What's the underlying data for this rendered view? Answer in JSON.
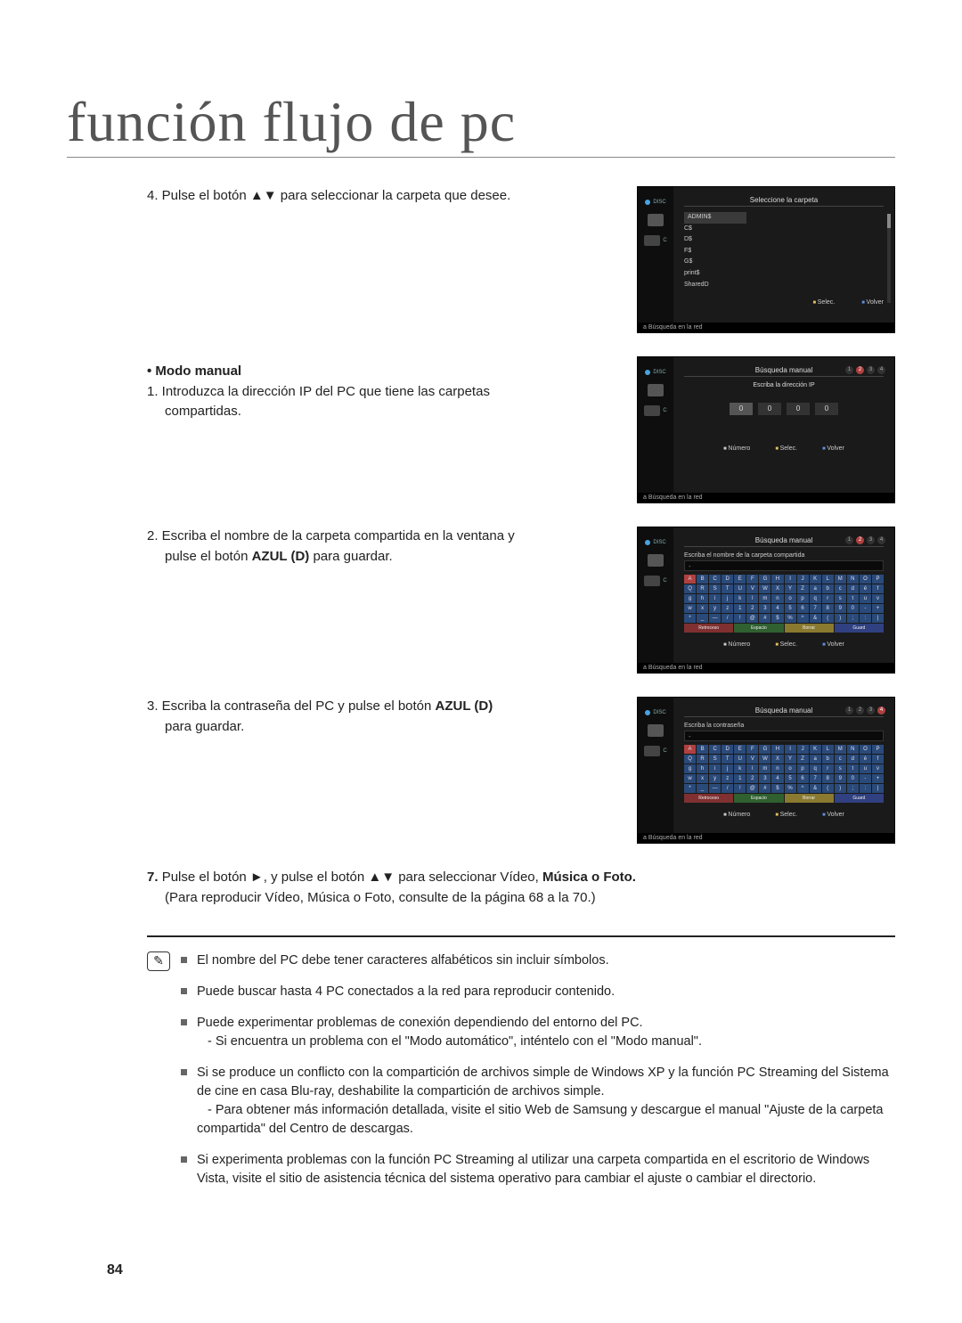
{
  "page": {
    "title": "función flujo de pc",
    "page_number": "84"
  },
  "instructions": {
    "step4": "4.  Pulse el botón ▲▼ para seleccionar la carpeta que desee.",
    "modo_manual_heading": "•  Modo manual",
    "step1a": "1.  Introduzca la dirección IP del PC que tiene las carpetas",
    "step1b": "compartidas.",
    "step2a": "2.  Escriba el nombre de la carpeta compartida en la ventana y",
    "step2b_pre": "pulse el botón ",
    "step2b_bold": "AZUL (D)",
    "step2b_post": " para guardar.",
    "step3a": "3.  Escriba la contraseña del PC y pulse el botón ",
    "step3a_bold": "AZUL (D)",
    "step3b": "para guardar.",
    "step7_num": "7. ",
    "step7a": "Pulse el botón ►, y pulse el botón ▲▼ para seleccionar Vídeo, ",
    "step7a_bold": "Música o Foto.",
    "step7b": "(Para reproducir Vídeo, Música o Foto, consulte de la página 68 a la 70.)"
  },
  "notes": {
    "n1": "El nombre del PC debe tener caracteres alfabéticos sin incluir símbolos.",
    "n2": "Puede buscar hasta 4 PC conectados a la red para reproducir contenido.",
    "n3": "Puede experimentar problemas de conexión dependiendo del entorno del PC.",
    "n3_sub": "- Si encuentra un problema con el \"Modo automático\", inténtelo con el \"Modo manual\".",
    "n4": "Si se produce un conflicto con la compartición de archivos simple de Windows XP y la función PC Streaming del Sistema de cine en casa Blu-ray, deshabilite la compartición de archivos simple.",
    "n4_sub": "- Para obtener más información detallada, visite el sitio Web de Samsung y descargue el manual \"Ajuste de la carpeta compartida\" del Centro de descargas.",
    "n5": "Si experimenta problemas con la función PC Streaming al utilizar una carpeta compartida en el escritorio de Windows Vista, visite el sitio de asistencia técnica del sistema operativo para cambiar el ajuste o cambiar el directorio."
  },
  "screenshots": {
    "common": {
      "disc_label": "DISC",
      "c_label": "C",
      "status_prefix": "a ",
      "status_text": "Búsqueda en la red",
      "btn_numero": "Número",
      "btn_selec": "Selec.",
      "btn_volver": "Volver"
    },
    "ss1": {
      "title": "Seleccione la carpeta",
      "folders": [
        "ADMIN$",
        "C$",
        "D$",
        "F$",
        "G$",
        "print$",
        "SharedD"
      ]
    },
    "ss2": {
      "title": "Búsqueda manual",
      "subtitle": "Escriba la dirección IP",
      "ip_values": [
        "0",
        "0",
        "0",
        "0"
      ],
      "step": "2"
    },
    "ss3": {
      "title": "Búsqueda manual",
      "input_label": "Escriba el nombre de la carpeta compartida",
      "keys_upper": [
        "A",
        "B",
        "C",
        "D",
        "E",
        "F",
        "G",
        "H",
        "I",
        "J",
        "K",
        "L",
        "M",
        "N",
        "O",
        "P",
        "Q",
        "R",
        "S",
        "T",
        "U",
        "V",
        "W",
        "X",
        "Y",
        "Z",
        "a",
        "b",
        "c",
        "d",
        "é",
        "f",
        "g",
        "h",
        "i",
        "j",
        "k",
        "l",
        "m",
        "n",
        "o",
        "p",
        "q",
        "r",
        "s",
        "t",
        "u",
        "v",
        "w",
        "x",
        "y",
        "z",
        "1",
        "2",
        "3",
        "4",
        "5",
        "6",
        "7",
        "8",
        "9",
        "0",
        "-",
        "+",
        "*",
        "_",
        "—",
        "/",
        "!",
        "@",
        "#",
        "$",
        "%",
        "^",
        "&",
        "(",
        ")",
        ";",
        ":",
        "|"
      ],
      "action_retroceso": "Retroceso",
      "action_espacio": "Espacio",
      "action_borrar": "Borrar",
      "action_guard": "Guard",
      "step": "2"
    },
    "ss4": {
      "title": "Búsqueda manual",
      "input_label": "Escriba la contraseña",
      "step": "4"
    }
  }
}
